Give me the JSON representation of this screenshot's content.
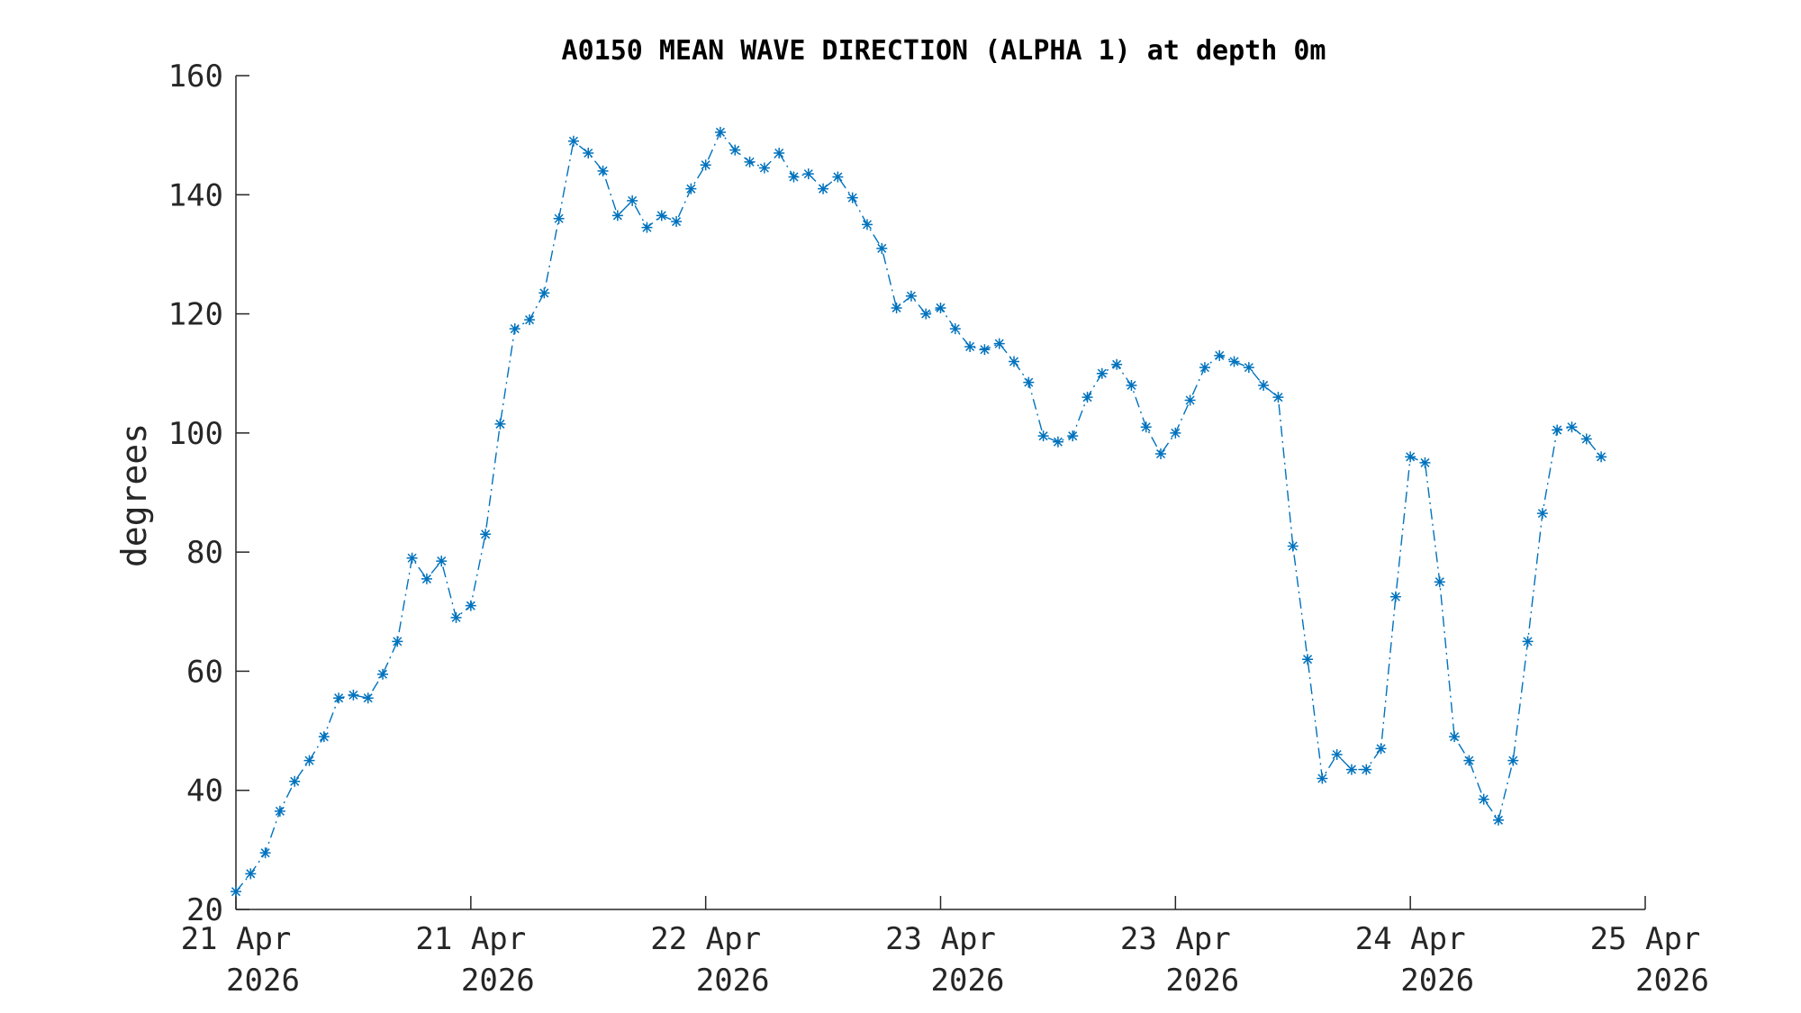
{
  "chart_data": {
    "type": "line",
    "title": "A0150 MEAN WAVE DIRECTION (ALPHA 1) at depth 0m",
    "xlabel": "",
    "ylabel": "degrees",
    "ylim": [
      20,
      160
    ],
    "yticks": [
      20,
      40,
      60,
      80,
      100,
      120,
      140,
      160
    ],
    "xlim_index": [
      0,
      96
    ],
    "xticks": [
      {
        "pos": 0,
        "line1": "21 Apr",
        "line2": "2026"
      },
      {
        "pos": 16,
        "line1": "21 Apr",
        "line2": "2026"
      },
      {
        "pos": 32,
        "line1": "22 Apr",
        "line2": "2026"
      },
      {
        "pos": 48,
        "line1": "23 Apr",
        "line2": "2026"
      },
      {
        "pos": 64,
        "line1": "23 Apr",
        "line2": "2026"
      },
      {
        "pos": 80,
        "line1": "24 Apr",
        "line2": "2026"
      },
      {
        "pos": 96,
        "line1": "25 Apr",
        "line2": "2026"
      }
    ],
    "grid": false,
    "marker": "asterisk",
    "line_style": "dash-dot",
    "color": "#0072BD",
    "series": [
      {
        "values": [
          23,
          26,
          29.5,
          36.5,
          41.5,
          45,
          49,
          55.5,
          56,
          55.5,
          59.5,
          65,
          79,
          75.5,
          78.5,
          69,
          71,
          83,
          101.5,
          117.5,
          119,
          123.5,
          136,
          149,
          147,
          144,
          136.5,
          139,
          134.5,
          136.5,
          135.5,
          141,
          145,
          150.5,
          147.5,
          145.5,
          144.5,
          147,
          143,
          143.5,
          141,
          143,
          139.5,
          135,
          131,
          121,
          123,
          120,
          121,
          117.5,
          114.5,
          114,
          115,
          112,
          108.5,
          99.5,
          98.5,
          99.5,
          106,
          110,
          111.5,
          108,
          101,
          96.5,
          100,
          105.5,
          111,
          113,
          112,
          111,
          108,
          106,
          81,
          62,
          42,
          46,
          43.5,
          43.5,
          47,
          72.5,
          96,
          95,
          75,
          49,
          45,
          38.5,
          35,
          45,
          65,
          86.5,
          100.5,
          101,
          99,
          96
        ]
      }
    ]
  }
}
